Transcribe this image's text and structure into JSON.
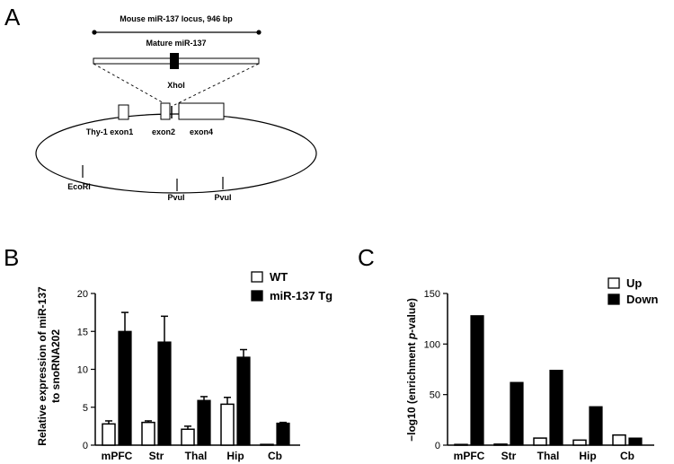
{
  "panels": {
    "a": "A",
    "b": "B",
    "c": "C"
  },
  "diagram": {
    "locus_label": "Mouse miR-137 locus, 946 bp",
    "mature_label": "Mature miR-137",
    "site_xhoi": "XhoI",
    "exon1_label": "Thy-1 exon1",
    "exon2_label": "exon2",
    "exon4_label": "exon4",
    "site_ecori": "EcoRI",
    "site_pvui_1": "PvuI",
    "site_pvui_2": "PvuI"
  },
  "chart_data": [
    {
      "id": "B",
      "type": "bar",
      "categories": [
        "mPFC",
        "Str",
        "Thal",
        "Hip",
        "Cb"
      ],
      "series": [
        {
          "name": "WT",
          "values": [
            2.8,
            3.0,
            2.1,
            5.4,
            0.1
          ],
          "errors": [
            0.4,
            0.2,
            0.4,
            0.9,
            0.0
          ]
        },
        {
          "name": "miR-137 Tg",
          "values": [
            15.0,
            13.6,
            5.9,
            11.6,
            2.9
          ],
          "errors": [
            2.5,
            3.4,
            0.5,
            1.0,
            0.1
          ]
        }
      ],
      "ylabel_line1": "Relative expression of miR-137",
      "ylabel_line2": "to snoRNA202",
      "ylim": [
        0,
        20
      ],
      "yticks": [
        "0",
        "5",
        "10",
        "15",
        "20"
      ]
    },
    {
      "id": "C",
      "type": "bar",
      "categories": [
        "mPFC",
        "Str",
        "Thal",
        "Hip",
        "Cb"
      ],
      "series": [
        {
          "name": "Up",
          "values": [
            0.5,
            1,
            7,
            5,
            10
          ]
        },
        {
          "name": "Down",
          "values": [
            128,
            62,
            74,
            38,
            7
          ]
        }
      ],
      "ylabel": "−log10 (enrichment p-value)",
      "ylabel_prefix": "−log10 (enrichment ",
      "ylabel_italic": "p",
      "ylabel_suffix": "-value)",
      "ylim": [
        0,
        150
      ],
      "yticks": [
        "0",
        "50",
        "100",
        "150"
      ]
    }
  ]
}
